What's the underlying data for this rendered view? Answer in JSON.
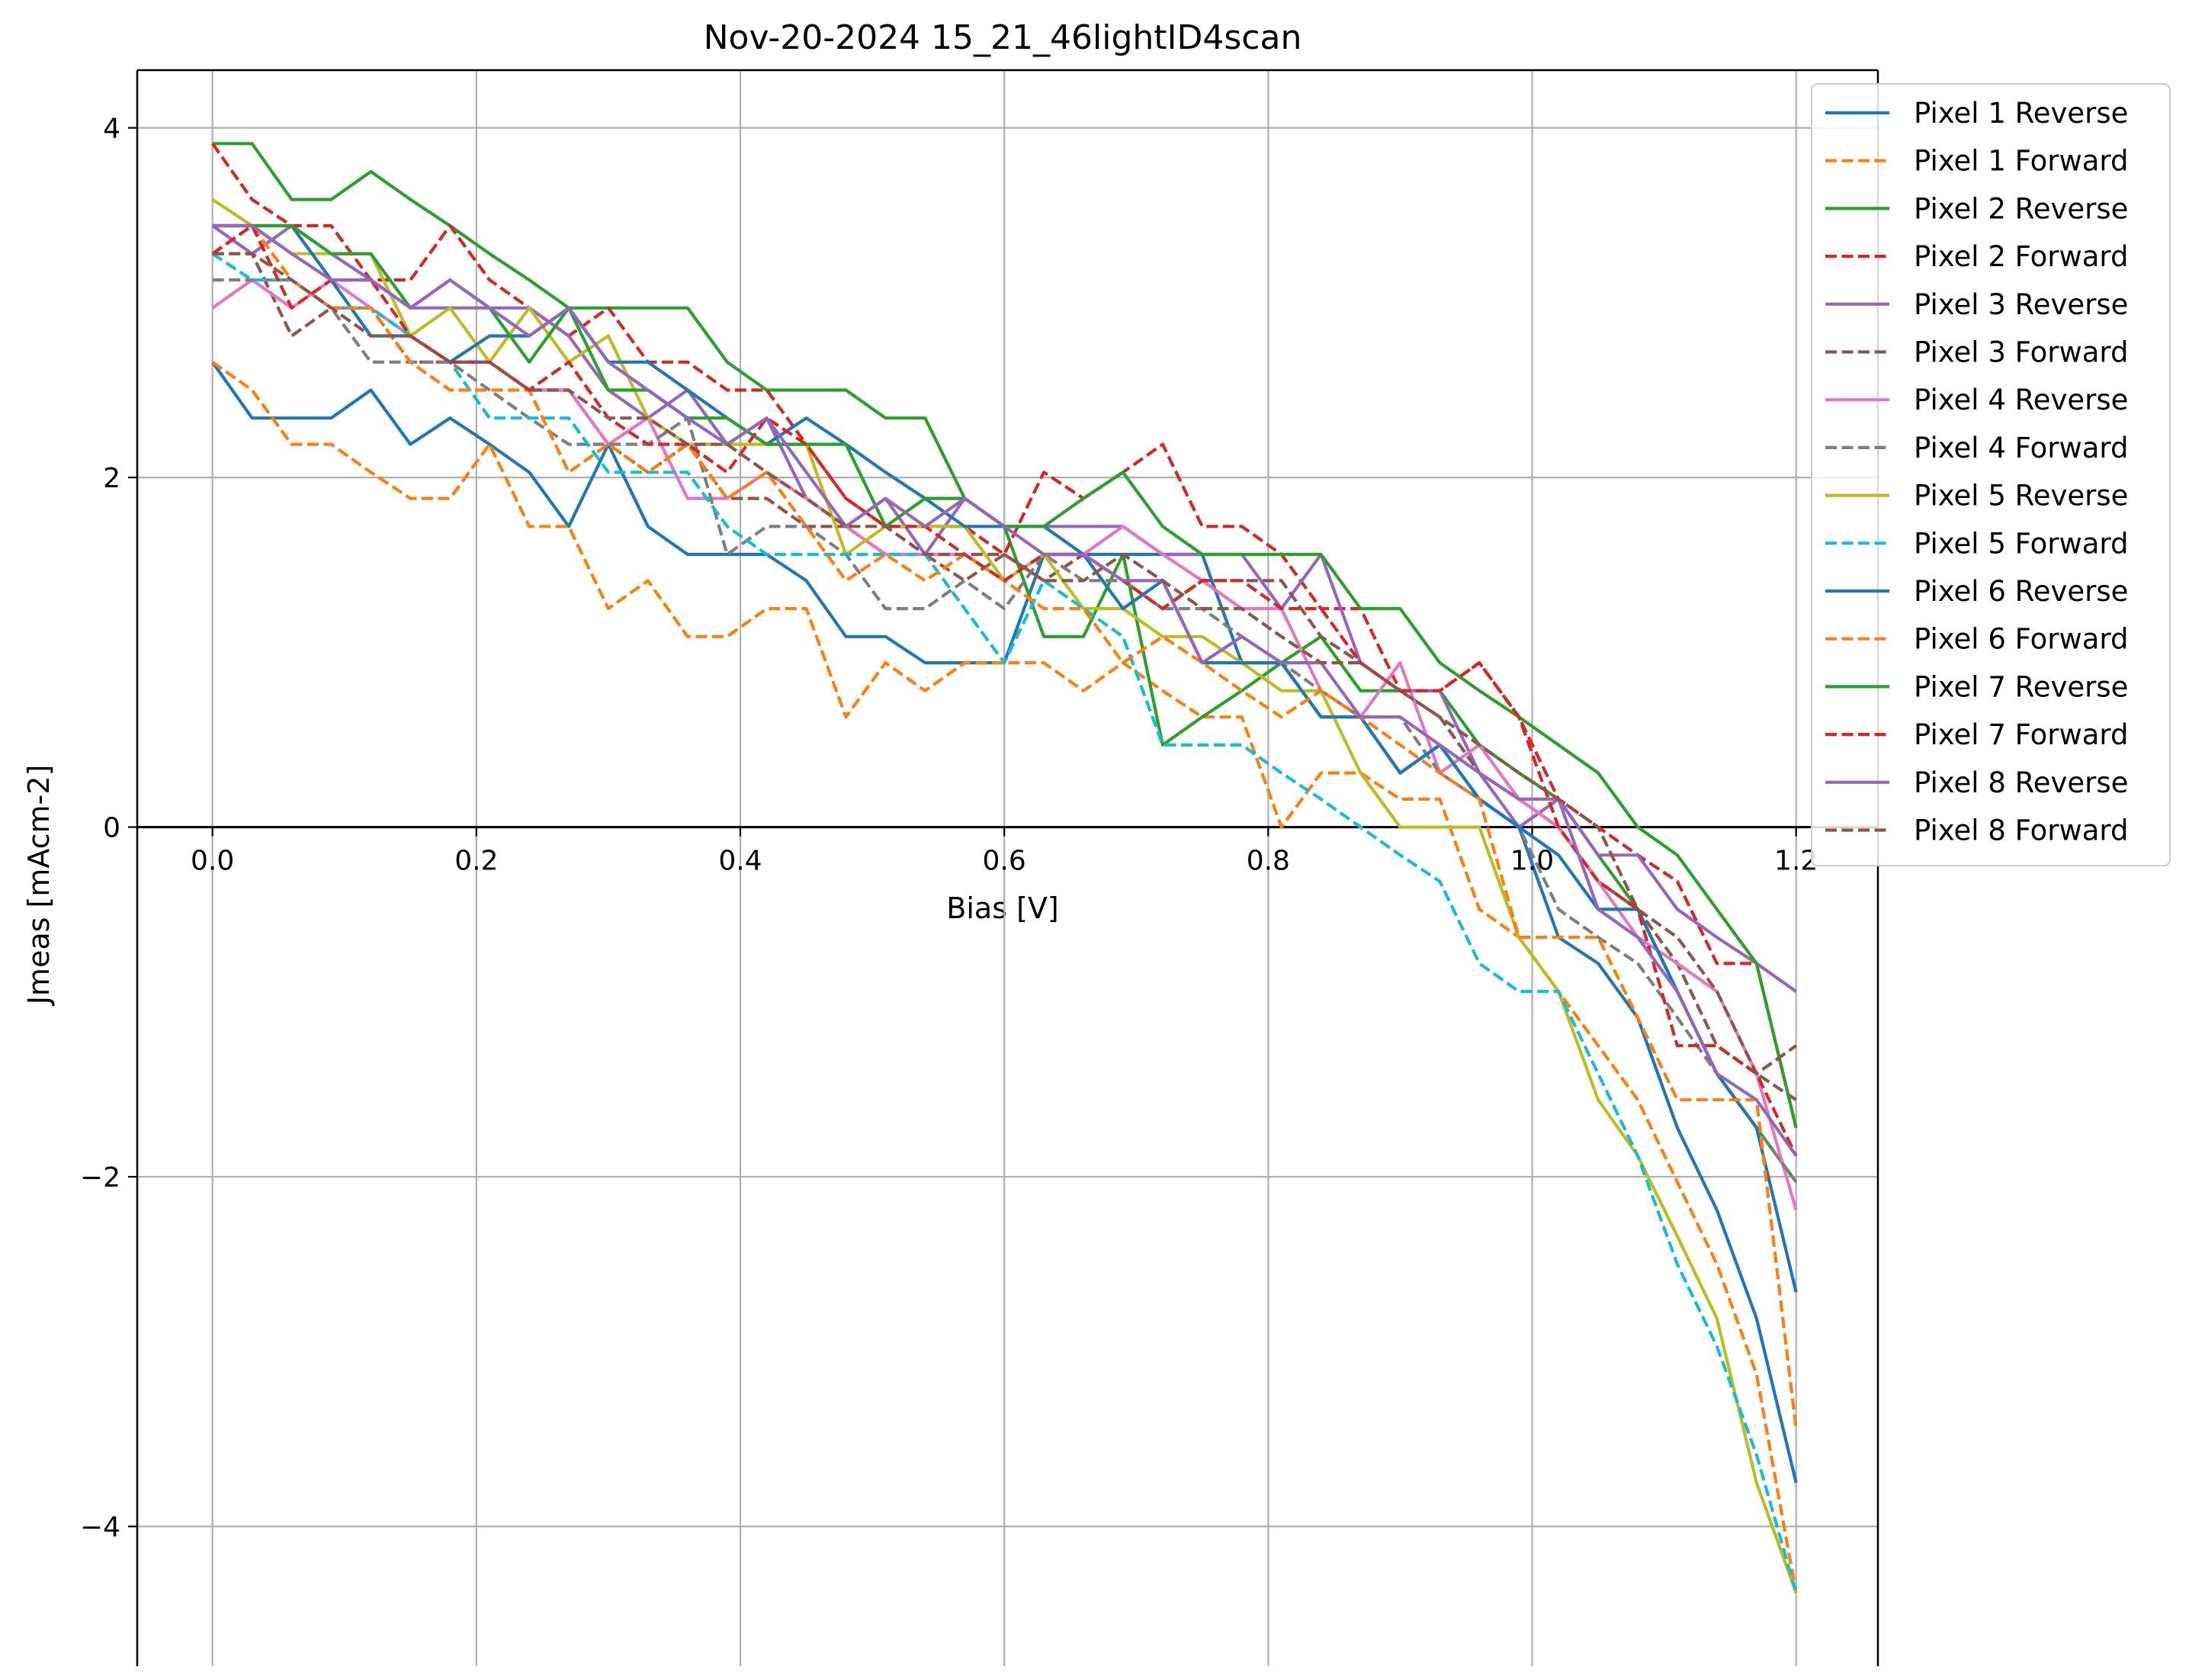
{
  "chart_data": {
    "type": "line",
    "title": "Nov-20-2024 15_21_46lightID4scan",
    "xlabel": "Bias [V]",
    "ylabel": "Jmeas [mAcm-2]",
    "xlim": [
      -0.057,
      1.262
    ],
    "ylim": [
      -4.8,
      4.33
    ],
    "x_ticks": [
      0.0,
      0.2,
      0.4,
      0.6,
      0.8,
      1.0,
      1.2
    ],
    "x_tick_labels": [
      "0.0",
      "0.2",
      "0.4",
      "0.6",
      "0.8",
      "1.0",
      "1.2"
    ],
    "y_ticks": [
      -4,
      -2,
      0,
      2,
      4
    ],
    "y_tick_labels": [
      "−4",
      "−2",
      "0",
      "2",
      "4"
    ],
    "grid": true,
    "zero_line": true,
    "legend_position": "top-right",
    "x": [
      0.0,
      0.03,
      0.06,
      0.09,
      0.12,
      0.15,
      0.18,
      0.21,
      0.24,
      0.27,
      0.3,
      0.33,
      0.36,
      0.39,
      0.42,
      0.45,
      0.48,
      0.51,
      0.54,
      0.57,
      0.6,
      0.63,
      0.66,
      0.69,
      0.72,
      0.75,
      0.78,
      0.81,
      0.84,
      0.87,
      0.9,
      0.93,
      0.96,
      0.99,
      1.02,
      1.05,
      1.08,
      1.11,
      1.14,
      1.17,
      1.2
    ],
    "series": [
      {
        "name": "Pixel 1 Reverse",
        "color": "#1f77b4",
        "dash": "solid",
        "values": [
          2.66,
          2.34,
          2.34,
          2.34,
          2.5,
          2.19,
          2.34,
          2.19,
          2.03,
          1.72,
          2.19,
          1.72,
          1.56,
          1.56,
          1.56,
          1.41,
          1.09,
          1.09,
          0.94,
          0.94,
          0.94,
          1.56,
          1.56,
          1.56,
          1.56,
          1.56,
          0.94,
          0.94,
          0.63,
          0.63,
          0.31,
          0.47,
          0.16,
          0.0,
          -0.63,
          -0.78,
          -1.09,
          -1.72,
          -2.19,
          -2.81,
          -3.75
        ]
      },
      {
        "name": "Pixel 1 Forward",
        "color": "#ff7f0e",
        "dash": "dashed",
        "values": [
          2.66,
          2.5,
          2.19,
          2.19,
          2.03,
          1.88,
          1.88,
          2.19,
          1.72,
          1.72,
          1.25,
          1.41,
          1.09,
          1.09,
          1.25,
          1.25,
          0.63,
          0.94,
          0.78,
          0.94,
          0.94,
          0.94,
          0.78,
          0.94,
          0.78,
          0.63,
          0.63,
          0.0,
          0.31,
          0.31,
          0.16,
          0.16,
          -0.47,
          -0.63,
          -0.94,
          -1.25,
          -1.56,
          -2.03,
          -2.5,
          -3.13,
          -4.38
        ]
      },
      {
        "name": "Pixel 2 Reverse",
        "color": "#2ca02c",
        "dash": "solid",
        "values": [
          3.91,
          3.91,
          3.59,
          3.59,
          3.75,
          3.59,
          3.44,
          3.28,
          3.13,
          2.97,
          2.97,
          2.97,
          2.97,
          2.66,
          2.5,
          2.5,
          2.5,
          2.34,
          2.34,
          1.88,
          1.72,
          1.09,
          1.09,
          1.56,
          0.47,
          0.63,
          0.78,
          0.94,
          1.09,
          0.78,
          0.78,
          0.78,
          0.47,
          0.31,
          0.16,
          -0.16,
          -0.47,
          -0.94,
          -1.41,
          -1.72,
          -2.03
        ]
      },
      {
        "name": "Pixel 2 Forward",
        "color": "#d62728",
        "dash": "dashed",
        "values": [
          3.91,
          3.59,
          3.44,
          3.44,
          3.13,
          3.13,
          3.44,
          3.13,
          2.97,
          2.81,
          2.97,
          2.66,
          2.66,
          2.5,
          2.5,
          2.19,
          1.88,
          1.72,
          1.72,
          1.72,
          1.56,
          2.03,
          1.88,
          2.03,
          2.19,
          1.72,
          1.72,
          1.56,
          1.25,
          1.25,
          0.78,
          0.78,
          0.94,
          0.63,
          0.16,
          0.0,
          -0.16,
          -0.31,
          -0.78,
          -0.78,
          -1.72
        ]
      },
      {
        "name": "Pixel 3 Reverse",
        "color": "#9467bd",
        "dash": "solid",
        "values": [
          3.44,
          3.28,
          3.44,
          3.28,
          3.13,
          2.97,
          2.97,
          2.97,
          2.97,
          2.81,
          2.5,
          2.34,
          2.5,
          2.19,
          2.34,
          1.88,
          1.72,
          1.88,
          1.56,
          1.88,
          1.72,
          1.72,
          1.72,
          1.72,
          1.56,
          1.56,
          1.56,
          1.25,
          1.56,
          0.94,
          0.78,
          0.78,
          0.31,
          0.0,
          0.16,
          -0.16,
          -0.16,
          -0.47,
          -0.63,
          -0.78,
          -0.94
        ]
      },
      {
        "name": "Pixel 3 Forward",
        "color": "#8c564b",
        "dash": "dashed",
        "values": [
          3.28,
          3.28,
          2.81,
          2.97,
          2.97,
          2.66,
          2.66,
          2.66,
          2.5,
          2.5,
          2.19,
          2.03,
          2.19,
          1.88,
          1.88,
          1.72,
          1.72,
          1.56,
          1.56,
          1.41,
          1.56,
          1.41,
          1.56,
          1.41,
          1.25,
          1.41,
          1.41,
          1.41,
          1.09,
          0.94,
          0.78,
          0.63,
          0.31,
          0.16,
          0.0,
          -0.31,
          -0.47,
          -0.78,
          -1.25,
          -1.41,
          -1.56
        ]
      },
      {
        "name": "Pixel 4 Reverse",
        "color": "#e377c2",
        "dash": "solid",
        "values": [
          2.97,
          3.13,
          2.97,
          3.13,
          2.97,
          2.81,
          2.66,
          2.66,
          2.5,
          2.5,
          2.19,
          2.34,
          1.88,
          1.88,
          2.03,
          1.88,
          1.72,
          1.56,
          1.56,
          1.56,
          1.41,
          1.56,
          1.56,
          1.72,
          1.56,
          1.41,
          1.25,
          1.25,
          0.78,
          0.63,
          0.94,
          0.31,
          0.47,
          0.16,
          0.0,
          -0.31,
          -0.63,
          -0.78,
          -0.94,
          -1.41,
          -2.19
        ]
      },
      {
        "name": "Pixel 4 Forward",
        "color": "#7f7f7f",
        "dash": "dashed",
        "values": [
          3.13,
          3.13,
          3.13,
          2.97,
          2.66,
          2.66,
          2.66,
          2.5,
          2.34,
          2.19,
          2.19,
          2.19,
          2.34,
          1.56,
          1.72,
          1.72,
          1.56,
          1.25,
          1.25,
          1.41,
          1.25,
          1.56,
          1.41,
          1.41,
          1.25,
          1.25,
          1.09,
          0.94,
          0.78,
          0.63,
          0.63,
          0.31,
          0.16,
          0.0,
          -0.47,
          -0.63,
          -0.78,
          -1.09,
          -1.41,
          -1.72,
          -2.03
        ]
      },
      {
        "name": "Pixel 5 Reverse",
        "color": "#bcbd22",
        "dash": "solid",
        "values": [
          3.59,
          3.44,
          3.28,
          3.28,
          3.28,
          2.81,
          2.97,
          2.66,
          2.97,
          2.66,
          2.81,
          2.34,
          2.19,
          2.19,
          2.19,
          2.19,
          1.56,
          1.72,
          1.72,
          1.72,
          1.41,
          1.56,
          1.25,
          1.25,
          1.09,
          1.09,
          0.94,
          0.78,
          0.78,
          0.31,
          0.0,
          0.0,
          0.0,
          -0.63,
          -0.94,
          -1.56,
          -1.88,
          -2.34,
          -2.81,
          -3.75,
          -4.38
        ]
      },
      {
        "name": "Pixel 5 Forward",
        "color": "#17becf",
        "dash": "dashed",
        "values": [
          3.28,
          3.13,
          3.13,
          2.97,
          2.97,
          2.81,
          2.66,
          2.34,
          2.34,
          2.34,
          2.03,
          2.03,
          2.03,
          1.72,
          1.56,
          1.56,
          1.56,
          1.56,
          1.56,
          1.25,
          0.94,
          1.41,
          1.25,
          1.09,
          0.47,
          0.47,
          0.47,
          0.31,
          0.16,
          0.0,
          -0.16,
          -0.31,
          -0.78,
          -0.94,
          -0.94,
          -1.41,
          -1.88,
          -2.5,
          -2.97,
          -3.59,
          -4.38
        ]
      },
      {
        "name": "Pixel 6 Reverse",
        "color": "#1f77b4",
        "dash": "solid",
        "values": [
          3.44,
          3.44,
          3.44,
          3.13,
          2.81,
          2.81,
          2.66,
          2.81,
          2.81,
          2.97,
          2.66,
          2.66,
          2.5,
          2.34,
          2.19,
          2.34,
          2.19,
          2.03,
          1.88,
          1.72,
          1.72,
          1.72,
          1.56,
          1.25,
          1.41,
          0.94,
          0.94,
          0.94,
          0.63,
          0.63,
          0.31,
          0.47,
          0.16,
          0.0,
          -0.16,
          -0.47,
          -0.47,
          -0.94,
          -1.41,
          -1.72,
          -2.66
        ]
      },
      {
        "name": "Pixel 6 Forward",
        "color": "#ff7f0e",
        "dash": "dashed",
        "values": [
          3.28,
          3.44,
          3.13,
          2.97,
          2.97,
          2.66,
          2.5,
          2.5,
          2.5,
          2.03,
          2.19,
          2.03,
          2.19,
          1.88,
          2.03,
          1.72,
          1.41,
          1.56,
          1.41,
          1.56,
          1.41,
          1.25,
          1.25,
          0.94,
          1.09,
          0.94,
          0.78,
          0.63,
          0.78,
          0.63,
          0.47,
          0.31,
          0.16,
          -0.63,
          -0.63,
          -0.63,
          -1.09,
          -1.56,
          -1.56,
          -1.56,
          -3.44
        ]
      },
      {
        "name": "Pixel 7 Reverse",
        "color": "#2ca02c",
        "dash": "solid",
        "values": [
          3.44,
          3.44,
          3.44,
          3.28,
          3.28,
          2.97,
          3.13,
          2.97,
          2.66,
          2.97,
          2.5,
          2.5,
          2.34,
          2.34,
          2.19,
          2.19,
          2.19,
          1.72,
          1.88,
          1.88,
          1.72,
          1.72,
          1.88,
          2.03,
          1.72,
          1.56,
          1.56,
          1.56,
          1.56,
          1.25,
          1.25,
          0.94,
          0.78,
          0.63,
          0.47,
          0.31,
          0.0,
          -0.16,
          -0.47,
          -0.78,
          -1.72
        ]
      },
      {
        "name": "Pixel 7 Forward",
        "color": "#d62728",
        "dash": "dashed",
        "values": [
          3.28,
          3.44,
          2.97,
          3.13,
          3.13,
          2.81,
          2.66,
          2.66,
          2.5,
          2.66,
          2.34,
          2.19,
          2.19,
          2.03,
          2.34,
          2.19,
          1.88,
          1.72,
          1.72,
          1.56,
          1.41,
          1.56,
          1.56,
          1.41,
          1.25,
          1.41,
          1.41,
          1.25,
          1.25,
          0.94,
          0.78,
          0.78,
          0.94,
          0.63,
          0.0,
          -0.31,
          -0.47,
          -1.25,
          -1.25,
          -1.41,
          -1.88
        ]
      },
      {
        "name": "Pixel 8 Reverse",
        "color": "#9467bd",
        "dash": "solid",
        "values": [
          3.44,
          3.44,
          3.28,
          3.13,
          3.13,
          2.97,
          3.13,
          2.97,
          2.81,
          2.97,
          2.66,
          2.5,
          2.34,
          2.19,
          2.34,
          2.03,
          1.72,
          1.88,
          1.72,
          1.88,
          1.72,
          1.56,
          1.56,
          1.41,
          1.41,
          0.94,
          1.09,
          0.94,
          0.94,
          0.63,
          0.63,
          0.47,
          0.31,
          0.16,
          0.16,
          -0.47,
          -0.63,
          -0.94,
          -1.41,
          -1.56,
          -1.88
        ]
      },
      {
        "name": "Pixel 8 Forward",
        "color": "#8c564b",
        "dash": "dashed",
        "values": [
          3.28,
          3.28,
          3.13,
          2.97,
          2.81,
          2.81,
          2.66,
          2.66,
          2.5,
          2.5,
          2.34,
          2.34,
          2.19,
          2.19,
          2.03,
          1.88,
          1.72,
          1.72,
          1.56,
          1.56,
          1.56,
          1.41,
          1.41,
          1.56,
          1.41,
          1.25,
          1.25,
          1.09,
          0.94,
          0.94,
          0.78,
          0.63,
          0.47,
          0.31,
          0.16,
          0.0,
          -0.47,
          -0.63,
          -0.94,
          -1.41,
          -1.25
        ]
      }
    ]
  }
}
